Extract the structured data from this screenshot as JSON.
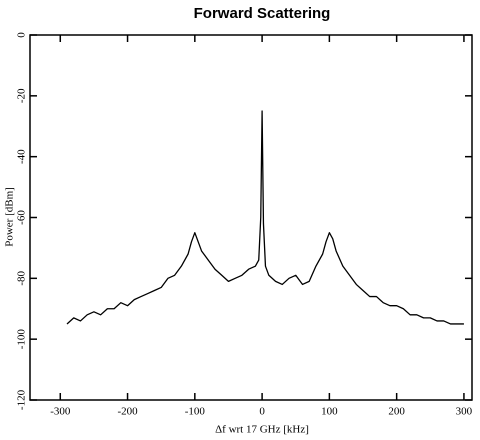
{
  "chart_data": {
    "type": "line",
    "title": "Forward Scattering",
    "x_label": "Δf wrt 17 GHz [kHz]",
    "y_label": "Power [dBm]",
    "x": [
      -290,
      -280,
      -270,
      -260,
      -250,
      -240,
      -230,
      -220,
      -210,
      -200,
      -190,
      -180,
      -170,
      -160,
      -150,
      -140,
      -130,
      -120,
      -110,
      -105,
      -100,
      -95,
      -90,
      -80,
      -70,
      -60,
      -50,
      -40,
      -30,
      -20,
      -10,
      -5,
      -2,
      0,
      2,
      5,
      10,
      20,
      30,
      40,
      50,
      60,
      70,
      80,
      90,
      95,
      100,
      105,
      110,
      120,
      130,
      140,
      150,
      160,
      170,
      180,
      190,
      200,
      210,
      220,
      230,
      240,
      250,
      260,
      270,
      280,
      290,
      300
    ],
    "values": [
      -95,
      -93,
      -94,
      -92,
      -91,
      -92,
      -90,
      -90,
      -88,
      -89,
      -87,
      -86,
      -85,
      -84,
      -83,
      -80,
      -79,
      -76,
      -72,
      -68,
      -65,
      -68,
      -71,
      -74,
      -77,
      -79,
      -81,
      -80,
      -79,
      -77,
      -76,
      -74,
      -60,
      -25,
      -62,
      -76,
      -79,
      -81,
      -82,
      -80,
      -79,
      -82,
      -81,
      -76,
      -72,
      -68,
      -65,
      -67,
      -71,
      -76,
      -79,
      -82,
      -84,
      -86,
      -86,
      -88,
      -89,
      -89,
      -90,
      -92,
      -92,
      -93,
      -93,
      -94,
      -94,
      -95,
      -95,
      -95
    ],
    "color": "#000000",
    "xlim": [
      -345,
      312
    ],
    "ylim": [
      -120,
      0
    ],
    "xticks": [
      -300,
      -200,
      -100,
      0,
      100,
      200,
      300
    ],
    "yticks": [
      0,
      -20,
      -40,
      -60,
      -80,
      -100,
      -120
    ],
    "grid": false
  }
}
